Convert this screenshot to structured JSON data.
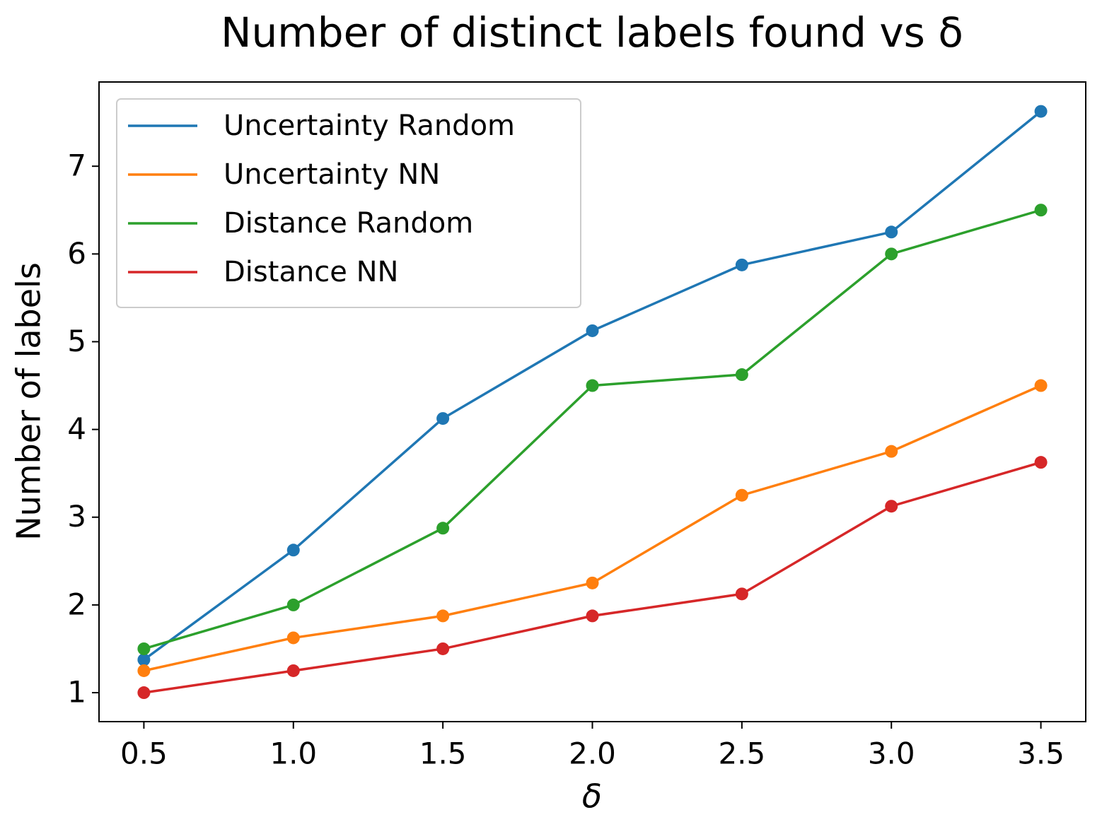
{
  "chart_data": {
    "type": "line",
    "title": "Number of distinct labels found vs δ",
    "xlabel": "δ",
    "ylabel": "Number of labels",
    "x": [
      0.5,
      1.0,
      1.5,
      2.0,
      2.5,
      3.0,
      3.5
    ],
    "series": [
      {
        "name": "Uncertainty Random",
        "color": "#1f77b4",
        "values": [
          1.375,
          2.625,
          4.125,
          5.125,
          5.875,
          6.25,
          7.625
        ]
      },
      {
        "name": "Uncertainty NN",
        "color": "#ff7f0e",
        "values": [
          1.25,
          1.625,
          1.875,
          2.25,
          3.25,
          3.75,
          4.5
        ]
      },
      {
        "name": "Distance Random",
        "color": "#2ca02c",
        "values": [
          1.5,
          2.0,
          2.875,
          4.5,
          4.625,
          6.0,
          6.5
        ]
      },
      {
        "name": "Distance NN",
        "color": "#d62728",
        "values": [
          1.0,
          1.25,
          1.5,
          1.875,
          2.125,
          3.125,
          3.625
        ]
      }
    ],
    "xlim": [
      0.35,
      3.65
    ],
    "ylim": [
      0.67,
      7.96
    ],
    "xticks": [
      0.5,
      {
        "value": 1.0,
        "label": "1.0"
      },
      1.5,
      {
        "value": 2.0,
        "label": "2.0"
      },
      2.5,
      {
        "value": 3.0,
        "label": "3.0"
      },
      3.5
    ],
    "yticks": [
      1,
      2,
      3,
      4,
      5,
      6,
      7
    ],
    "legend": "upper left",
    "grid": false
  }
}
